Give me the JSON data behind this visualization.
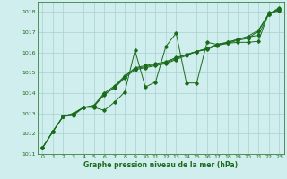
{
  "x": [
    0,
    1,
    2,
    3,
    4,
    5,
    6,
    7,
    8,
    9,
    10,
    11,
    12,
    13,
    14,
    15,
    16,
    17,
    18,
    19,
    20,
    21,
    22,
    23
  ],
  "line1": [
    1011.3,
    1012.1,
    1012.85,
    1012.9,
    1013.3,
    1013.3,
    1013.15,
    1013.55,
    1014.05,
    1016.1,
    1014.3,
    1014.55,
    1016.3,
    1016.95,
    1014.5,
    1014.5,
    1016.5,
    1016.4,
    1016.45,
    1016.5,
    1016.5,
    1016.55,
    1017.95,
    1018.05
  ],
  "line2": [
    1011.3,
    1012.1,
    1012.85,
    1012.95,
    1013.3,
    1013.35,
    1013.9,
    1014.3,
    1014.8,
    1015.25,
    1015.35,
    1015.45,
    1015.55,
    1015.75,
    1015.9,
    1016.05,
    1016.2,
    1016.4,
    1016.5,
    1016.65,
    1016.75,
    1016.85,
    1017.9,
    1018.1
  ],
  "line3": [
    1011.3,
    1012.1,
    1012.85,
    1013.0,
    1013.3,
    1013.35,
    1013.95,
    1014.25,
    1014.75,
    1015.15,
    1015.25,
    1015.35,
    1015.45,
    1015.65,
    1015.85,
    1016.05,
    1016.15,
    1016.35,
    1016.45,
    1016.6,
    1016.7,
    1017.05,
    1017.9,
    1018.15
  ],
  "line4": [
    1011.3,
    1012.1,
    1012.85,
    1013.0,
    1013.3,
    1013.4,
    1014.0,
    1014.35,
    1014.85,
    1015.2,
    1015.3,
    1015.4,
    1015.5,
    1015.7,
    1015.9,
    1016.05,
    1016.2,
    1016.4,
    1016.5,
    1016.65,
    1016.8,
    1017.1,
    1017.9,
    1018.2
  ],
  "line_color": "#1a6b1a",
  "marker_color": "#1a6b1a",
  "bg_color": "#d0eeee",
  "grid_color": "#a8d0d0",
  "text_color": "#1a6b1a",
  "xlabel": "Graphe pression niveau de la mer (hPa)",
  "ylim": [
    1011,
    1018.5
  ],
  "yticks": [
    1011,
    1012,
    1013,
    1014,
    1015,
    1016,
    1017,
    1018
  ],
  "xticks": [
    0,
    1,
    2,
    3,
    4,
    5,
    6,
    7,
    8,
    9,
    10,
    11,
    12,
    13,
    14,
    15,
    16,
    17,
    18,
    19,
    20,
    21,
    22,
    23
  ]
}
